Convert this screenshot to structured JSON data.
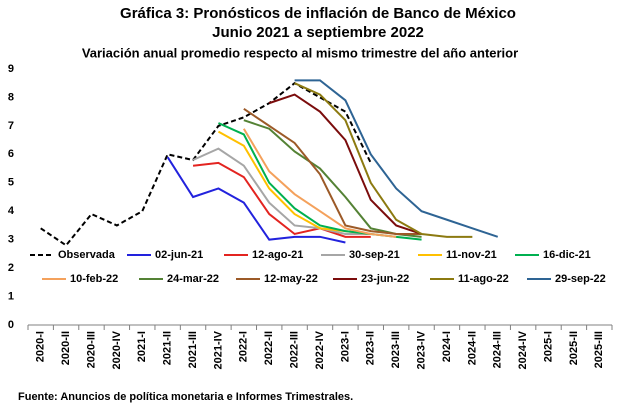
{
  "chart_data": {
    "type": "line",
    "title": "Gráfica 3: Pronósticos de inflación de Banco de México",
    "subtitle": "Junio 2021 a septiembre 2022",
    "y_axis_label": "Variación anual promedio respecto al mismo trimestre del año anterior",
    "source": "Fuente: Anuncios de política monetaria e Informes Trimestrales.",
    "categories": [
      "2020-I",
      "2020-II",
      "2020-III",
      "2020-IV",
      "2021-I",
      "2021-II",
      "2021-III",
      "2021-IV",
      "2022-I",
      "2022-II",
      "2022-III",
      "2022-IV",
      "2023-I",
      "2023-II",
      "2023-III",
      "2023-IV",
      "2024-I",
      "2024-II",
      "2024-III",
      "2024-IV",
      "2025-I",
      "2025-II",
      "2025-III"
    ],
    "ylim": [
      0,
      9
    ],
    "yticks": [
      0,
      1,
      2,
      3,
      4,
      5,
      6,
      7,
      8,
      9
    ],
    "series": [
      {
        "name": "Observada",
        "color": "#000000",
        "dashed": true,
        "values": [
          3.4,
          2.8,
          3.9,
          3.5,
          4.0,
          6.0,
          5.8,
          7.0,
          7.3,
          7.8,
          8.5,
          8.0,
          7.5,
          5.7,
          null,
          null,
          null,
          null,
          null,
          null,
          null,
          null,
          null
        ]
      },
      {
        "name": "02-jun-21",
        "color": "#2222dd",
        "values": [
          null,
          null,
          null,
          null,
          null,
          5.9,
          4.5,
          4.8,
          4.3,
          3.0,
          3.1,
          3.1,
          2.9,
          null,
          null,
          null,
          null,
          null,
          null,
          null,
          null,
          null,
          null
        ]
      },
      {
        "name": "12-ago-21",
        "color": "#e32420",
        "values": [
          null,
          null,
          null,
          null,
          null,
          null,
          5.6,
          5.7,
          5.2,
          3.9,
          3.2,
          3.4,
          3.1,
          3.1,
          null,
          null,
          null,
          null,
          null,
          null,
          null,
          null,
          null
        ]
      },
      {
        "name": "30-sep-21",
        "color": "#a6a6a6",
        "values": [
          null,
          null,
          null,
          null,
          null,
          null,
          5.8,
          6.2,
          5.6,
          4.3,
          3.5,
          3.4,
          3.2,
          3.2,
          null,
          null,
          null,
          null,
          null,
          null,
          null,
          null,
          null
        ]
      },
      {
        "name": "11-nov-21",
        "color": "#ffc000",
        "values": [
          null,
          null,
          null,
          null,
          null,
          null,
          null,
          6.8,
          6.3,
          4.8,
          3.9,
          3.4,
          3.3,
          3.2,
          null,
          null,
          null,
          null,
          null,
          null,
          null,
          null,
          null
        ]
      },
      {
        "name": "16-dic-21",
        "color": "#00b050",
        "values": [
          null,
          null,
          null,
          null,
          null,
          null,
          null,
          7.1,
          6.7,
          5.0,
          4.1,
          3.5,
          3.3,
          3.2,
          3.1,
          3.0,
          null,
          null,
          null,
          null,
          null,
          null,
          null
        ]
      },
      {
        "name": "10-feb-22",
        "color": "#f4a15c",
        "values": [
          null,
          null,
          null,
          null,
          null,
          null,
          null,
          null,
          6.9,
          5.4,
          4.6,
          4.0,
          3.4,
          3.2,
          3.1,
          null,
          null,
          null,
          null,
          null,
          null,
          null,
          null
        ]
      },
      {
        "name": "24-mar-22",
        "color": "#548235",
        "values": [
          null,
          null,
          null,
          null,
          null,
          null,
          null,
          null,
          7.2,
          6.9,
          6.1,
          5.5,
          4.5,
          3.4,
          3.2,
          3.1,
          null,
          null,
          null,
          null,
          null,
          null,
          null
        ]
      },
      {
        "name": "12-may-22",
        "color": "#9c5a28",
        "values": [
          null,
          null,
          null,
          null,
          null,
          null,
          null,
          null,
          7.6,
          7.0,
          6.4,
          5.3,
          3.5,
          3.3,
          3.2,
          3.2,
          null,
          null,
          null,
          null,
          null,
          null,
          null
        ]
      },
      {
        "name": "23-jun-22",
        "color": "#7b0c0c",
        "values": [
          null,
          null,
          null,
          null,
          null,
          null,
          null,
          null,
          null,
          7.8,
          8.1,
          7.5,
          6.5,
          4.4,
          3.5,
          3.2,
          null,
          null,
          null,
          null,
          null,
          null,
          null
        ]
      },
      {
        "name": "11-ago-22",
        "color": "#8c7a10",
        "values": [
          null,
          null,
          null,
          null,
          null,
          null,
          null,
          null,
          null,
          null,
          8.5,
          8.1,
          7.2,
          5.0,
          3.7,
          3.2,
          3.1,
          3.1,
          null,
          null,
          null,
          null,
          null
        ]
      },
      {
        "name": "29-sep-22",
        "color": "#2e6494",
        "values": [
          null,
          null,
          null,
          null,
          null,
          null,
          null,
          null,
          null,
          null,
          8.6,
          8.6,
          7.9,
          6.0,
          4.8,
          4.0,
          3.7,
          3.4,
          3.1,
          null,
          null,
          null,
          null
        ]
      }
    ]
  }
}
